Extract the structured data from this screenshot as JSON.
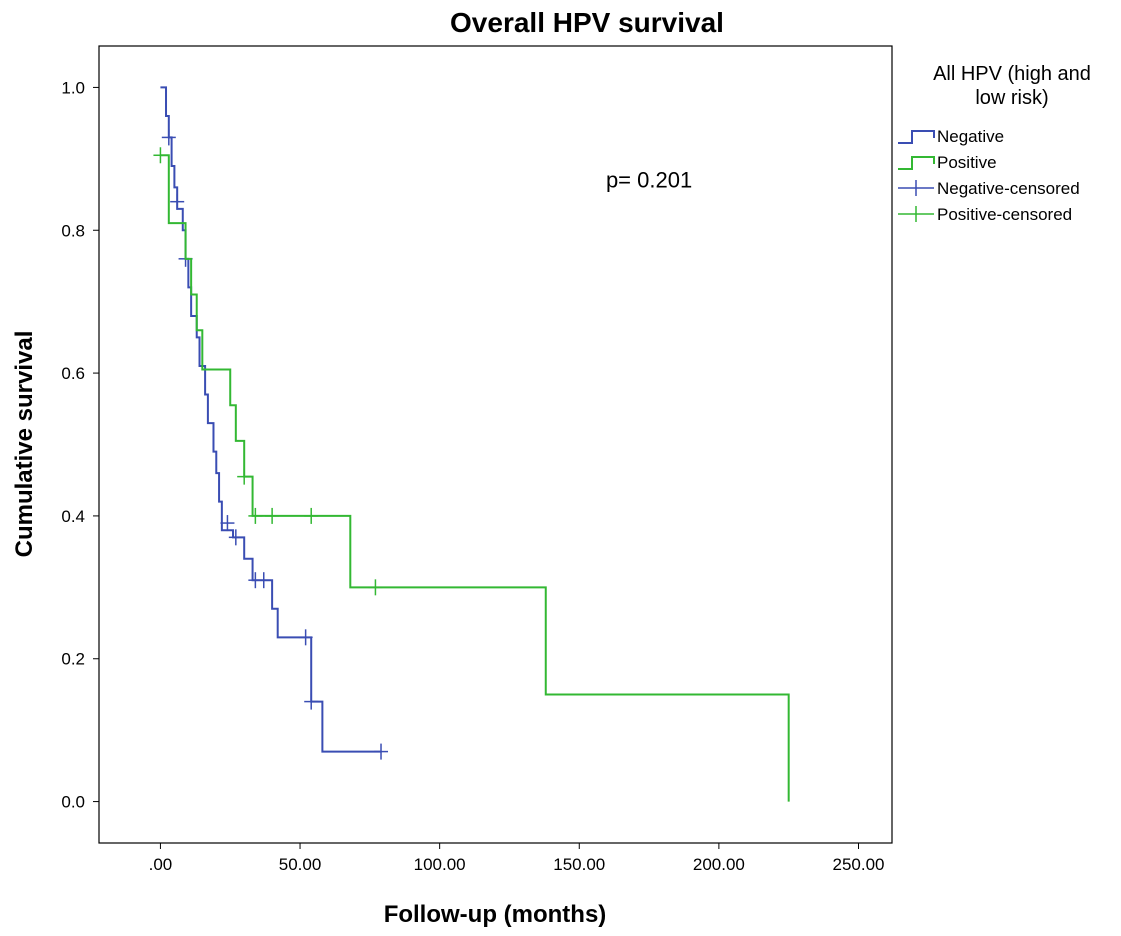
{
  "chart_data": {
    "type": "line",
    "subtype": "kaplan-meier",
    "title": "Overall HPV survival",
    "xlabel": "Follow-up (months)",
    "ylabel": "Cumulative survival",
    "xlim": [
      -22,
      262
    ],
    "ylim": [
      -0.058,
      1.058
    ],
    "x_ticks": [
      0,
      50,
      100,
      150,
      200,
      250
    ],
    "x_tick_labels": [
      ".00",
      "50.00",
      "100.00",
      "150.00",
      "200.00",
      "250.00"
    ],
    "y_ticks": [
      0.0,
      0.2,
      0.4,
      0.6,
      0.8,
      1.0
    ],
    "y_tick_labels": [
      "0.0",
      "0.2",
      "0.4",
      "0.6",
      "0.8",
      "1.0"
    ],
    "grid": false,
    "legend": {
      "title_lines": [
        "All HPV (high and",
        "low risk)"
      ],
      "placement": "right",
      "entries": [
        {
          "label": "Negative",
          "kind": "step",
          "color": "#3a4db3"
        },
        {
          "label": "Positive",
          "kind": "step",
          "color": "#33b833"
        },
        {
          "label": "Negative-censored",
          "kind": "censor",
          "color": "#3a4db3"
        },
        {
          "label": "Positive-censored",
          "kind": "censor",
          "color": "#33b833"
        }
      ]
    },
    "annotations": [
      {
        "text": "p= 0.201",
        "x": 175,
        "y": 0.86
      }
    ],
    "series": [
      {
        "name": "Negative",
        "color": "#3a4db3",
        "steps": [
          [
            0,
            1.0
          ],
          [
            2,
            0.96
          ],
          [
            3,
            0.93
          ],
          [
            4,
            0.89
          ],
          [
            5,
            0.86
          ],
          [
            6,
            0.83
          ],
          [
            8,
            0.8
          ],
          [
            9,
            0.76
          ],
          [
            10,
            0.72
          ],
          [
            11,
            0.68
          ],
          [
            13,
            0.65
          ],
          [
            14,
            0.61
          ],
          [
            16,
            0.57
          ],
          [
            17,
            0.53
          ],
          [
            19,
            0.49
          ],
          [
            20,
            0.46
          ],
          [
            21,
            0.42
          ],
          [
            22,
            0.38
          ],
          [
            26,
            0.37
          ],
          [
            30,
            0.34
          ],
          [
            33,
            0.31
          ],
          [
            40,
            0.27
          ],
          [
            42,
            0.23
          ],
          [
            54,
            0.14
          ],
          [
            58,
            0.07
          ]
        ],
        "end": [
          79,
          0.07
        ],
        "censored": [
          [
            3,
            0.93
          ],
          [
            6,
            0.84
          ],
          [
            9,
            0.76
          ],
          [
            24,
            0.39
          ],
          [
            27,
            0.37
          ],
          [
            34,
            0.31
          ],
          [
            37,
            0.31
          ],
          [
            52,
            0.23
          ],
          [
            54,
            0.14
          ],
          [
            79,
            0.07
          ]
        ]
      },
      {
        "name": "Positive",
        "color": "#33b833",
        "steps": [
          [
            0,
            0.905
          ],
          [
            3,
            0.81
          ],
          [
            9,
            0.76
          ],
          [
            11,
            0.71
          ],
          [
            13,
            0.66
          ],
          [
            15,
            0.605
          ],
          [
            25,
            0.555
          ],
          [
            27,
            0.505
          ],
          [
            30,
            0.455
          ],
          [
            33,
            0.4
          ],
          [
            68,
            0.3
          ],
          [
            138,
            0.15
          ],
          [
            225,
            0.0
          ]
        ],
        "end": [
          225,
          0.0
        ],
        "censored": [
          [
            0,
            0.905
          ],
          [
            30,
            0.455
          ],
          [
            34,
            0.4
          ],
          [
            40,
            0.4
          ],
          [
            54,
            0.4
          ],
          [
            77,
            0.3
          ]
        ]
      }
    ]
  }
}
